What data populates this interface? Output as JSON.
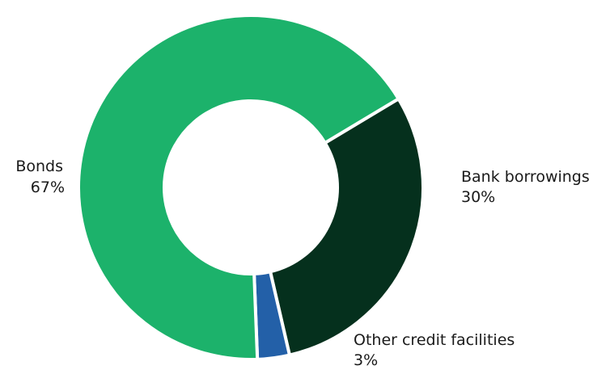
{
  "chart_data": {
    "type": "pie",
    "donut": true,
    "title": "",
    "slices": [
      {
        "name": "Bank borrowings",
        "value": 30,
        "label": "30%",
        "color": "#05301d"
      },
      {
        "name": "Other credit facilities",
        "value": 3,
        "label": "3%",
        "color": "#2360a8"
      },
      {
        "name": "Bonds",
        "value": 67,
        "label": "67%",
        "color": "#1cb26b"
      }
    ],
    "legend": "none"
  }
}
